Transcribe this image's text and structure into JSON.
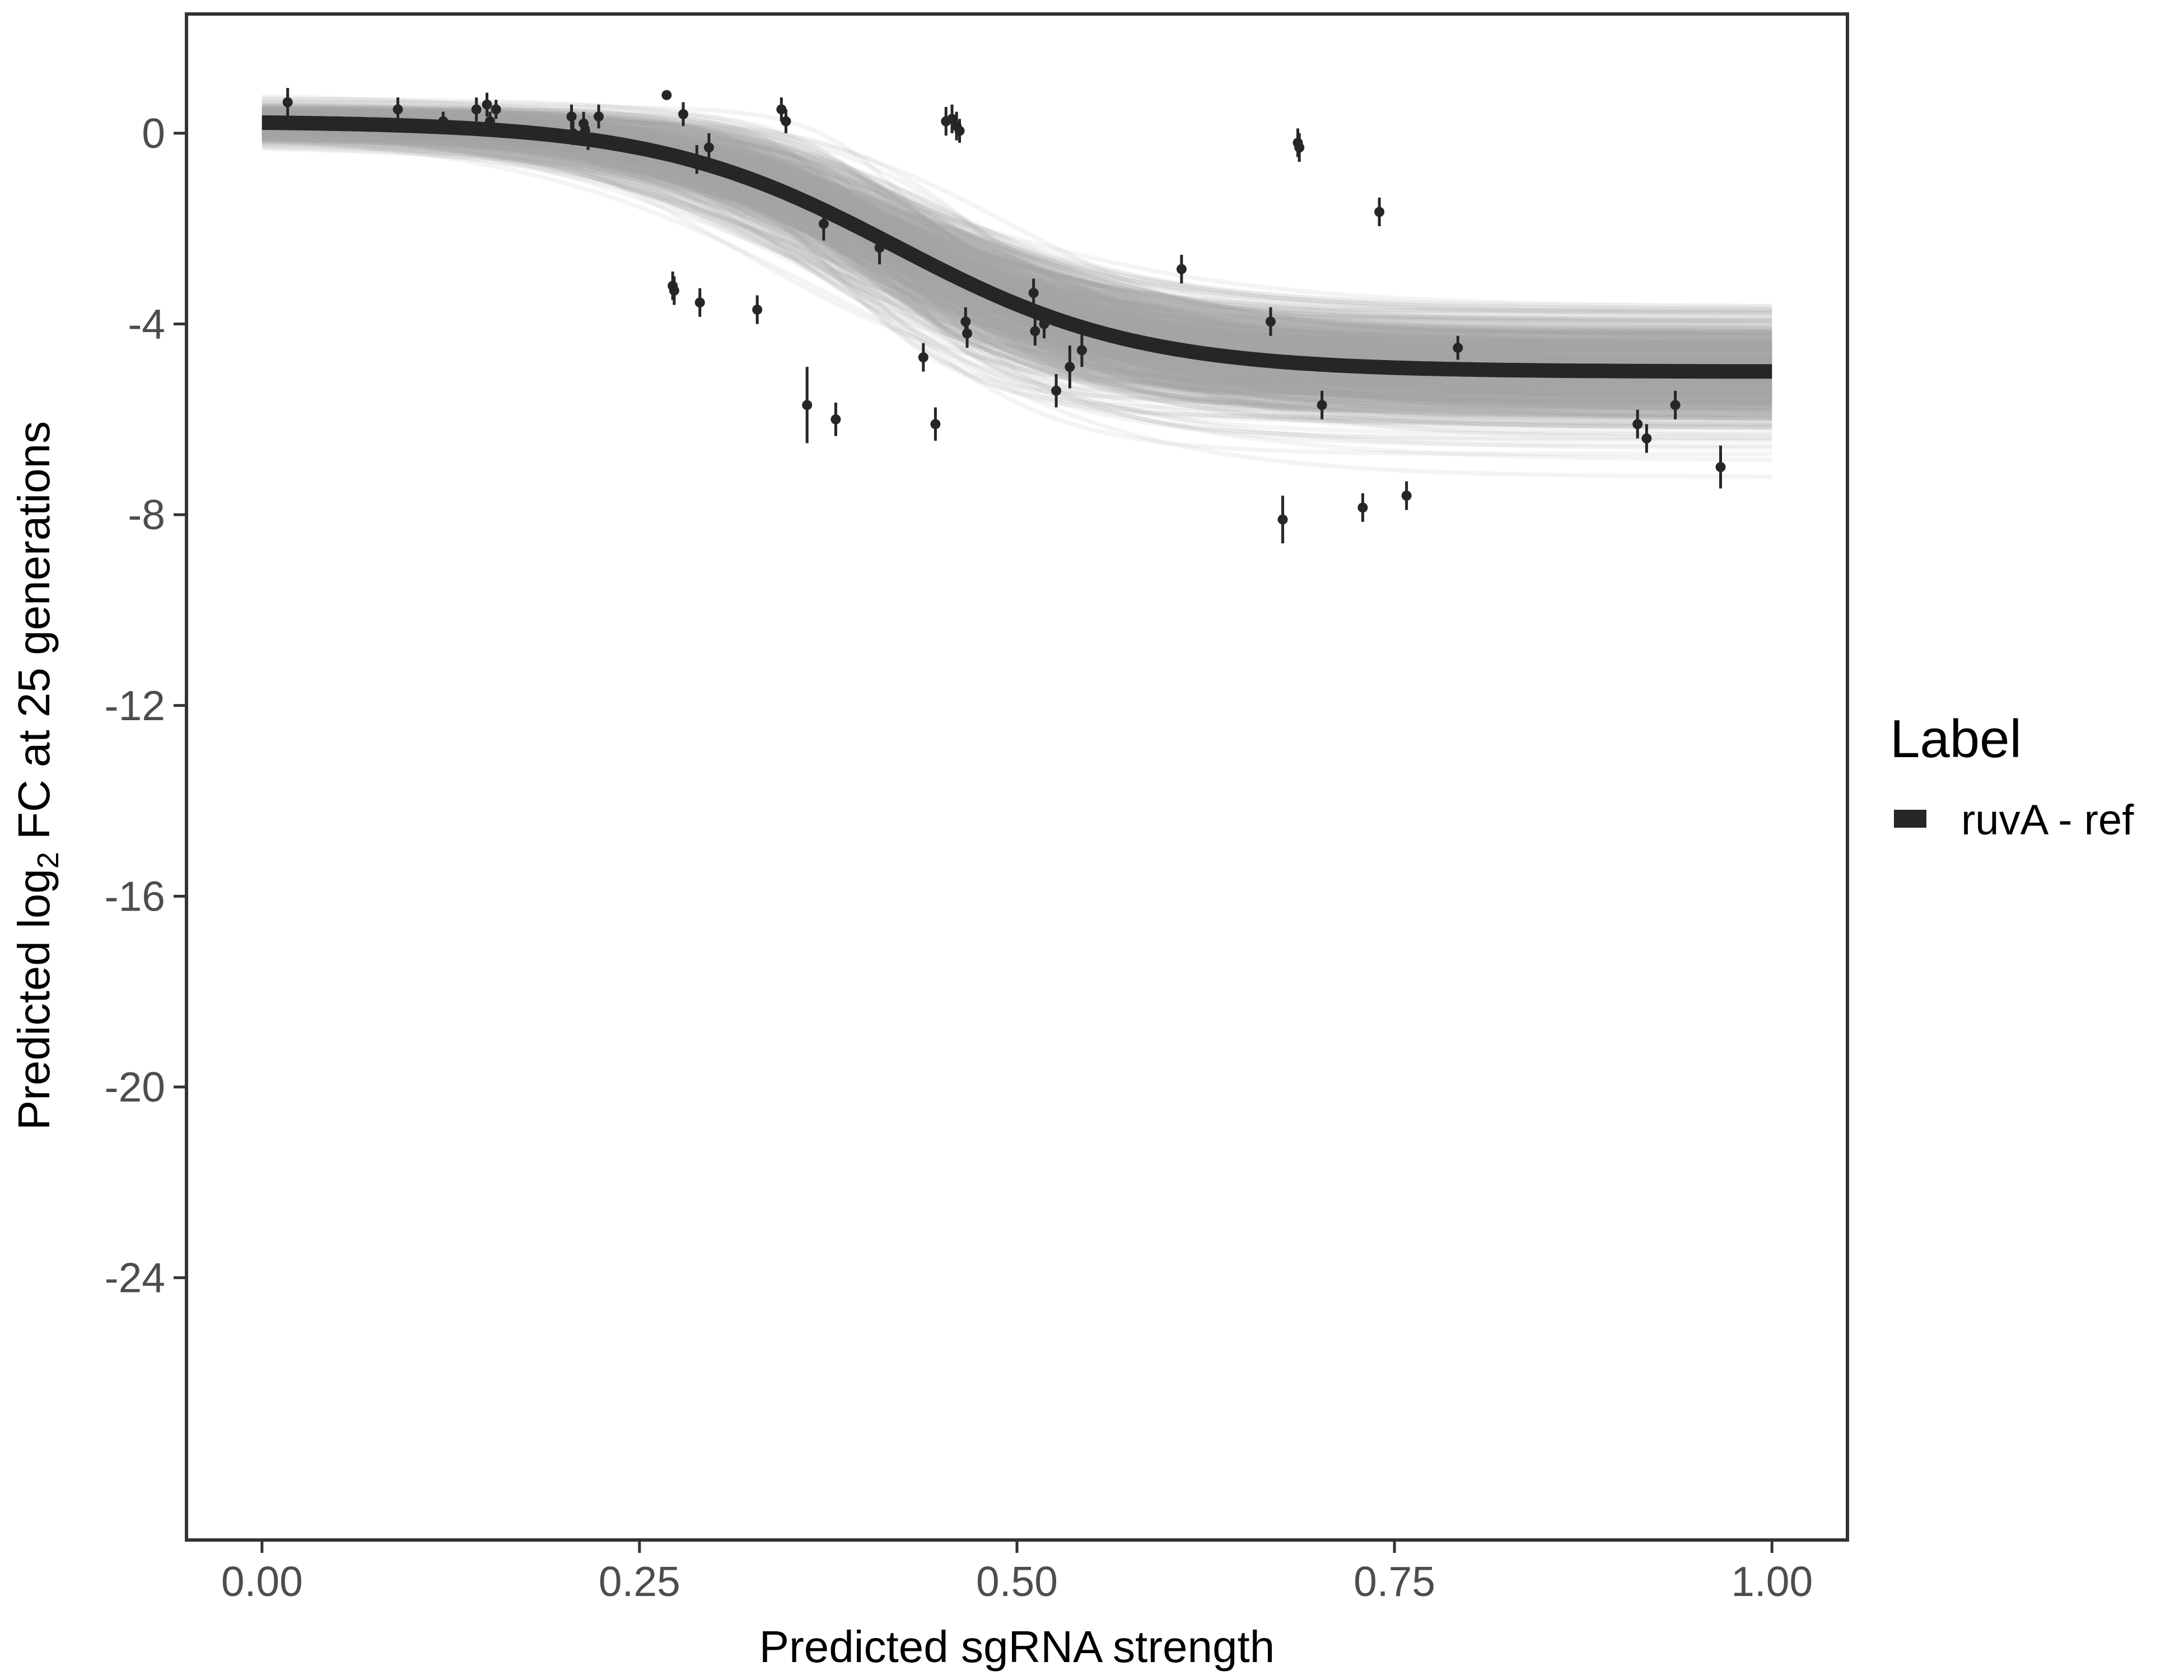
{
  "chart_data": {
    "type": "line",
    "xlabel": "Predicted sgRNA strength",
    "ylabel_prefix": "Predicted  log",
    "ylabel_sub": "2",
    "ylabel_suffix": " FC at 25 generations",
    "xlim": [
      -0.05,
      1.05
    ],
    "ylim": [
      -29.5,
      2.5
    ],
    "x_ticks": [
      0,
      0.25,
      0.5,
      0.75,
      1
    ],
    "x_tick_labels": [
      "0.00",
      "0.25",
      "0.50",
      "0.75",
      "1.00"
    ],
    "y_ticks": [
      0,
      -4,
      -8,
      -12,
      -16,
      -20,
      -24
    ],
    "y_tick_labels": [
      "0",
      "-4",
      "-8",
      "-12",
      "-16",
      "-20",
      "-24"
    ],
    "grid": false,
    "legend": {
      "title": "Label",
      "position": "right",
      "entries": [
        "ruvA - ref"
      ]
    },
    "colors": {
      "fit": "#262626",
      "band": "#a6a6a6",
      "points": "#262626",
      "frame": "#333333"
    },
    "series": [
      {
        "name": "ruvA - ref",
        "kind": "fit",
        "model": {
          "top": 0.25,
          "bottom": -5.0,
          "midpoint": 0.42,
          "width": 0.08
        },
        "band_samples": 600
      },
      {
        "kind": "observations",
        "points": [
          {
            "x": 0.017,
            "y": 0.65,
            "err": 0.3
          },
          {
            "x": 0.09,
            "y": 0.5,
            "err": 0.25
          },
          {
            "x": 0.12,
            "y": 0.25,
            "err": 0.2
          },
          {
            "x": 0.142,
            "y": 0.5,
            "err": 0.25
          },
          {
            "x": 0.149,
            "y": 0.6,
            "err": 0.25
          },
          {
            "x": 0.151,
            "y": 0.25,
            "err": 0.2
          },
          {
            "x": 0.155,
            "y": 0.5,
            "err": 0.2
          },
          {
            "x": 0.205,
            "y": 0.35,
            "err": 0.25
          },
          {
            "x": 0.206,
            "y": 0.0,
            "err": 0.25
          },
          {
            "x": 0.213,
            "y": 0.2,
            "err": 0.25
          },
          {
            "x": 0.214,
            "y": 0.05,
            "err": 0.25
          },
          {
            "x": 0.216,
            "y": -0.1,
            "err": 0.25
          },
          {
            "x": 0.223,
            "y": 0.35,
            "err": 0.25
          },
          {
            "x": 0.268,
            "y": 0.8,
            "err": 0.0
          },
          {
            "x": 0.272,
            "y": -3.2,
            "err": 0.3
          },
          {
            "x": 0.273,
            "y": -3.3,
            "err": 0.3
          },
          {
            "x": 0.279,
            "y": 0.4,
            "err": 0.25
          },
          {
            "x": 0.288,
            "y": -0.55,
            "err": 0.3
          },
          {
            "x": 0.29,
            "y": -3.55,
            "err": 0.3
          },
          {
            "x": 0.296,
            "y": -0.3,
            "err": 0.3
          },
          {
            "x": 0.328,
            "y": -3.7,
            "err": 0.3
          },
          {
            "x": 0.344,
            "y": 0.5,
            "err": 0.25
          },
          {
            "x": 0.347,
            "y": 0.25,
            "err": 0.25
          },
          {
            "x": 0.361,
            "y": -5.7,
            "err": 0.8
          },
          {
            "x": 0.372,
            "y": -1.9,
            "err": 0.35
          },
          {
            "x": 0.38,
            "y": -6.0,
            "err": 0.35
          },
          {
            "x": 0.409,
            "y": -2.4,
            "err": 0.35
          },
          {
            "x": 0.438,
            "y": -4.7,
            "err": 0.3
          },
          {
            "x": 0.446,
            "y": -6.1,
            "err": 0.35
          },
          {
            "x": 0.453,
            "y": 0.25,
            "err": 0.3
          },
          {
            "x": 0.457,
            "y": 0.3,
            "err": 0.3
          },
          {
            "x": 0.46,
            "y": 0.15,
            "err": 0.3
          },
          {
            "x": 0.462,
            "y": 0.05,
            "err": 0.25
          },
          {
            "x": 0.466,
            "y": -3.95,
            "err": 0.3
          },
          {
            "x": 0.467,
            "y": -4.2,
            "err": 0.3
          },
          {
            "x": 0.511,
            "y": -3.35,
            "err": 0.3
          },
          {
            "x": 0.512,
            "y": -4.15,
            "err": 0.3
          },
          {
            "x": 0.518,
            "y": -4.0,
            "err": 0.3
          },
          {
            "x": 0.526,
            "y": -5.4,
            "err": 0.35
          },
          {
            "x": 0.535,
            "y": -4.9,
            "err": 0.45
          },
          {
            "x": 0.543,
            "y": -4.55,
            "err": 0.35
          },
          {
            "x": 0.609,
            "y": -2.85,
            "err": 0.3
          },
          {
            "x": 0.668,
            "y": -3.95,
            "err": 0.3
          },
          {
            "x": 0.676,
            "y": -8.1,
            "err": 0.5
          },
          {
            "x": 0.686,
            "y": -0.2,
            "err": 0.3
          },
          {
            "x": 0.687,
            "y": -0.3,
            "err": 0.3
          },
          {
            "x": 0.702,
            "y": -5.7,
            "err": 0.3
          },
          {
            "x": 0.729,
            "y": -7.85,
            "err": 0.3
          },
          {
            "x": 0.74,
            "y": -1.65,
            "err": 0.3
          },
          {
            "x": 0.758,
            "y": -7.6,
            "err": 0.3
          },
          {
            "x": 0.792,
            "y": -4.5,
            "err": 0.25
          },
          {
            "x": 0.911,
            "y": -6.1,
            "err": 0.3
          },
          {
            "x": 0.917,
            "y": -6.4,
            "err": 0.3
          },
          {
            "x": 0.936,
            "y": -5.7,
            "err": 0.3
          },
          {
            "x": 0.966,
            "y": -7.0,
            "err": 0.45
          }
        ]
      }
    ]
  }
}
